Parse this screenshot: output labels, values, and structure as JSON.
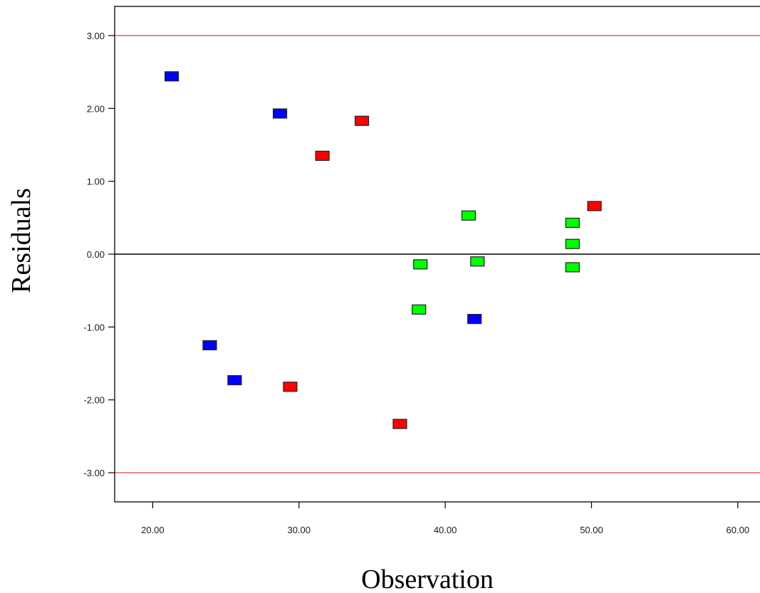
{
  "chart_data": {
    "type": "scatter",
    "title": "",
    "xlabel": "Observation",
    "ylabel": "Residuals",
    "xlim": [
      17.4,
      62.2
    ],
    "ylim": [
      -3.4,
      3.4
    ],
    "x_ticks": [
      20,
      30,
      40,
      50,
      60
    ],
    "x_tick_labels": [
      "20.00",
      "30.00",
      "40.00",
      "50.00",
      "60.00"
    ],
    "y_ticks": [
      3,
      2,
      1,
      0,
      -1,
      -2,
      -3
    ],
    "y_tick_labels": [
      "3.00",
      "2.00",
      "1.00",
      "0.00",
      "-1.00",
      "-2.00",
      "-3.00"
    ],
    "reference_lines": [
      {
        "y": 3,
        "color": "#e05555"
      },
      {
        "y": 0,
        "color": "#000000"
      },
      {
        "y": -3,
        "color": "#e05555"
      }
    ],
    "grid": false,
    "legend": "none",
    "marker": "square",
    "series": [
      {
        "color": "#0000ff",
        "points": [
          {
            "x": 21.3,
            "y": 2.44
          },
          {
            "x": 28.7,
            "y": 1.93
          },
          {
            "x": 23.9,
            "y": -1.25
          },
          {
            "x": 25.6,
            "y": -1.73
          },
          {
            "x": 42.0,
            "y": -0.89
          }
        ]
      },
      {
        "color": "#ff0000",
        "points": [
          {
            "x": 34.3,
            "y": 1.83
          },
          {
            "x": 31.6,
            "y": 1.35
          },
          {
            "x": 50.2,
            "y": 0.66
          },
          {
            "x": 29.4,
            "y": -1.82
          },
          {
            "x": 36.9,
            "y": -2.33
          }
        ]
      },
      {
        "color": "#00ff00",
        "points": [
          {
            "x": 41.6,
            "y": 0.53
          },
          {
            "x": 48.7,
            "y": 0.43
          },
          {
            "x": 48.7,
            "y": 0.14
          },
          {
            "x": 38.3,
            "y": -0.14
          },
          {
            "x": 42.2,
            "y": -0.1
          },
          {
            "x": 48.7,
            "y": -0.18
          },
          {
            "x": 38.2,
            "y": -0.76
          }
        ]
      }
    ]
  }
}
